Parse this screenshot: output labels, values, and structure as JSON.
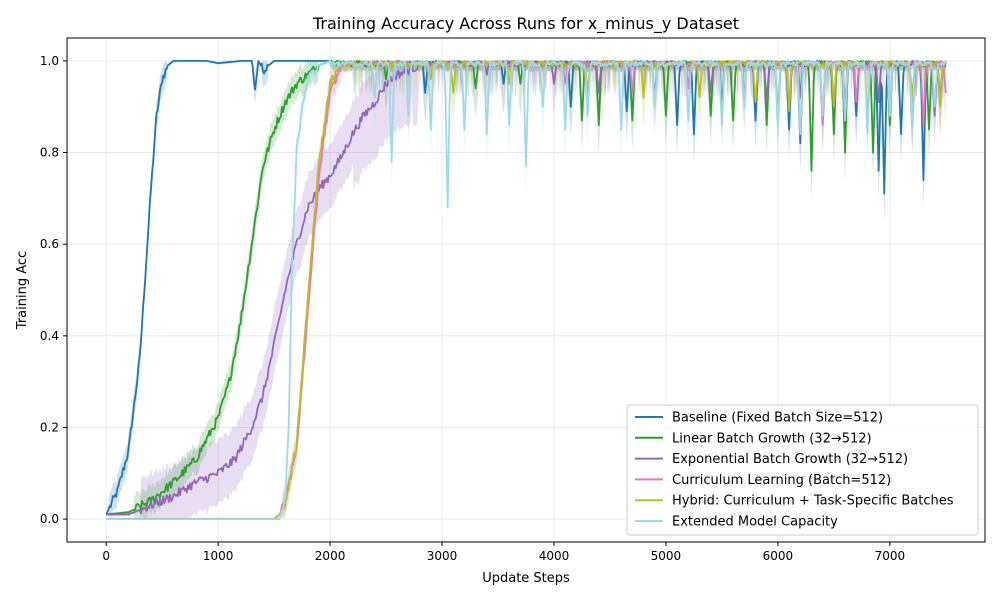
{
  "chart_data": {
    "type": "line",
    "title": "Training Accuracy Across Runs for x_minus_y Dataset",
    "xlabel": "Update Steps",
    "ylabel": "Training Acc",
    "xlim": [
      -350,
      7850
    ],
    "ylim": [
      -0.05,
      1.05
    ],
    "xticks": [
      0,
      1000,
      2000,
      3000,
      4000,
      5000,
      6000,
      7000
    ],
    "yticks": [
      0.0,
      0.2,
      0.4,
      0.6,
      0.8,
      1.0
    ],
    "xtick_labels": [
      "0",
      "1000",
      "2000",
      "3000",
      "4000",
      "5000",
      "6000",
      "7000"
    ],
    "ytick_labels": [
      "0.0",
      "0.2",
      "0.4",
      "0.6",
      "0.8",
      "1.0"
    ],
    "grid": true,
    "legend_position": "lower-right",
    "x_max": 7500,
    "series": [
      {
        "name": "Baseline (Fixed Batch Size=512)",
        "color": "#1f77b4",
        "points": [
          [
            0,
            0.01
          ],
          [
            100,
            0.06
          ],
          [
            200,
            0.15
          ],
          [
            300,
            0.35
          ],
          [
            400,
            0.72
          ],
          [
            450,
            0.88
          ],
          [
            500,
            0.96
          ],
          [
            550,
            0.99
          ],
          [
            600,
            1.0
          ],
          [
            900,
            1.0
          ],
          [
            1000,
            0.995
          ],
          [
            1200,
            1.0
          ],
          [
            1300,
            1.0
          ],
          [
            1330,
            0.94
          ],
          [
            1360,
            1.0
          ],
          [
            1400,
            0.98
          ],
          [
            1500,
            1.0
          ],
          [
            2000,
            1.0
          ]
        ],
        "dips": [
          [
            2850,
            0.93
          ],
          [
            3550,
            0.95
          ],
          [
            4150,
            0.9
          ],
          [
            4650,
            0.89
          ],
          [
            5100,
            0.86
          ],
          [
            5250,
            0.84
          ],
          [
            5500,
            0.9
          ],
          [
            5800,
            0.87
          ],
          [
            6100,
            0.85
          ],
          [
            6200,
            0.82
          ],
          [
            6500,
            0.9
          ],
          [
            6700,
            0.88
          ],
          [
            6900,
            0.76
          ],
          [
            6950,
            0.71
          ],
          [
            7100,
            0.84
          ],
          [
            7300,
            0.74
          ],
          [
            7450,
            0.91
          ]
        ]
      },
      {
        "name": "Linear Batch Growth (32→512)",
        "color": "#2ca02c",
        "points": [
          [
            0,
            0.01
          ],
          [
            200,
            0.015
          ],
          [
            400,
            0.04
          ],
          [
            600,
            0.08
          ],
          [
            800,
            0.13
          ],
          [
            1000,
            0.22
          ],
          [
            1100,
            0.3
          ],
          [
            1200,
            0.43
          ],
          [
            1300,
            0.6
          ],
          [
            1400,
            0.77
          ],
          [
            1500,
            0.85
          ],
          [
            1600,
            0.91
          ],
          [
            1700,
            0.95
          ],
          [
            1800,
            0.97
          ],
          [
            1900,
            0.99
          ],
          [
            2000,
            1.0
          ]
        ],
        "dips": [
          [
            2500,
            0.96
          ],
          [
            3300,
            0.94
          ],
          [
            3700,
            0.95
          ],
          [
            4250,
            0.87
          ],
          [
            4400,
            0.86
          ],
          [
            4700,
            0.87
          ],
          [
            5000,
            0.88
          ],
          [
            5400,
            0.88
          ],
          [
            5600,
            0.87
          ],
          [
            5900,
            0.86
          ],
          [
            6000,
            0.87
          ],
          [
            6300,
            0.76
          ],
          [
            6500,
            0.84
          ],
          [
            6600,
            0.8
          ],
          [
            6850,
            0.8
          ],
          [
            7000,
            0.86
          ],
          [
            7200,
            0.86
          ],
          [
            7350,
            0.85
          ]
        ]
      },
      {
        "name": "Exponential Batch Growth (32→512)",
        "color": "#9467bd",
        "points": [
          [
            0,
            0.01
          ],
          [
            200,
            0.01
          ],
          [
            400,
            0.03
          ],
          [
            600,
            0.05
          ],
          [
            800,
            0.08
          ],
          [
            1000,
            0.1
          ],
          [
            1150,
            0.13
          ],
          [
            1300,
            0.2
          ],
          [
            1400,
            0.27
          ],
          [
            1500,
            0.38
          ],
          [
            1600,
            0.5
          ],
          [
            1700,
            0.6
          ],
          [
            1800,
            0.68
          ],
          [
            1900,
            0.72
          ],
          [
            2000,
            0.75
          ],
          [
            2100,
            0.79
          ],
          [
            2200,
            0.84
          ],
          [
            2300,
            0.88
          ],
          [
            2400,
            0.91
          ],
          [
            2500,
            0.95
          ],
          [
            2600,
            0.97
          ],
          [
            2800,
            0.99
          ],
          [
            3000,
            1.0
          ]
        ],
        "dips": [
          [
            3400,
            0.97
          ],
          [
            4000,
            0.95
          ],
          [
            4400,
            0.93
          ],
          [
            4900,
            0.92
          ],
          [
            5400,
            0.93
          ],
          [
            5900,
            0.91
          ],
          [
            6200,
            0.92
          ],
          [
            6400,
            0.87
          ],
          [
            6600,
            0.9
          ],
          [
            6900,
            0.91
          ],
          [
            7200,
            0.87
          ],
          [
            7400,
            0.88
          ]
        ]
      },
      {
        "name": "Curriculum Learning (Batch=512)",
        "color": "#e377c2",
        "points": [
          [
            0,
            0.0
          ],
          [
            1500,
            0.0
          ],
          [
            1550,
            0.01
          ],
          [
            1600,
            0.04
          ],
          [
            1700,
            0.15
          ],
          [
            1800,
            0.45
          ],
          [
            1900,
            0.75
          ],
          [
            2000,
            0.93
          ],
          [
            2100,
            0.99
          ],
          [
            2200,
            1.0
          ]
        ],
        "dips": [
          [
            4100,
            0.95
          ],
          [
            4700,
            0.93
          ],
          [
            5200,
            0.94
          ],
          [
            5700,
            0.92
          ],
          [
            6100,
            0.9
          ],
          [
            6400,
            0.86
          ],
          [
            6700,
            0.91
          ],
          [
            7000,
            0.89
          ],
          [
            7300,
            0.86
          ],
          [
            7500,
            0.93
          ]
        ]
      },
      {
        "name": "Hybrid: Curriculum + Task-Specific Batches",
        "color": "#bcbd22",
        "points": [
          [
            0,
            0.0
          ],
          [
            1500,
            0.0
          ],
          [
            1550,
            0.01
          ],
          [
            1600,
            0.03
          ],
          [
            1700,
            0.16
          ],
          [
            1800,
            0.48
          ],
          [
            1900,
            0.78
          ],
          [
            2000,
            0.95
          ],
          [
            2100,
            0.995
          ],
          [
            2200,
            1.0
          ]
        ],
        "dips": [
          [
            2900,
            0.96
          ],
          [
            3100,
            0.93
          ],
          [
            3600,
            0.95
          ],
          [
            4300,
            0.93
          ],
          [
            4800,
            0.92
          ],
          [
            5300,
            0.92
          ],
          [
            5800,
            0.91
          ],
          [
            6100,
            0.89
          ],
          [
            6500,
            0.9
          ],
          [
            6800,
            0.87
          ],
          [
            7200,
            0.92
          ],
          [
            7450,
            0.9
          ]
        ]
      },
      {
        "name": "Extended Model Capacity",
        "color": "#9edae5",
        "points": [
          [
            0,
            0.0
          ],
          [
            1550,
            0.0
          ],
          [
            1600,
            0.05
          ],
          [
            1630,
            0.2
          ],
          [
            1660,
            0.55
          ],
          [
            1700,
            0.8
          ],
          [
            1750,
            0.9
          ],
          [
            1800,
            0.96
          ],
          [
            1900,
            0.99
          ],
          [
            2000,
            1.0
          ]
        ],
        "dips": [
          [
            2400,
            0.92
          ],
          [
            2550,
            0.78
          ],
          [
            2700,
            0.88
          ],
          [
            2900,
            0.85
          ],
          [
            3050,
            0.68
          ],
          [
            3200,
            0.85
          ],
          [
            3400,
            0.84
          ],
          [
            3600,
            0.86
          ],
          [
            3750,
            0.77
          ],
          [
            3900,
            0.9
          ],
          [
            4100,
            0.85
          ],
          [
            4300,
            0.88
          ],
          [
            4600,
            0.85
          ],
          [
            4900,
            0.9
          ],
          [
            5200,
            0.87
          ],
          [
            5500,
            0.86
          ],
          [
            5700,
            0.9
          ],
          [
            6000,
            0.86
          ],
          [
            6200,
            0.84
          ],
          [
            6400,
            0.88
          ],
          [
            6600,
            0.87
          ],
          [
            6800,
            0.84
          ],
          [
            7000,
            0.88
          ],
          [
            7200,
            0.86
          ],
          [
            7400,
            0.9
          ]
        ]
      }
    ]
  }
}
